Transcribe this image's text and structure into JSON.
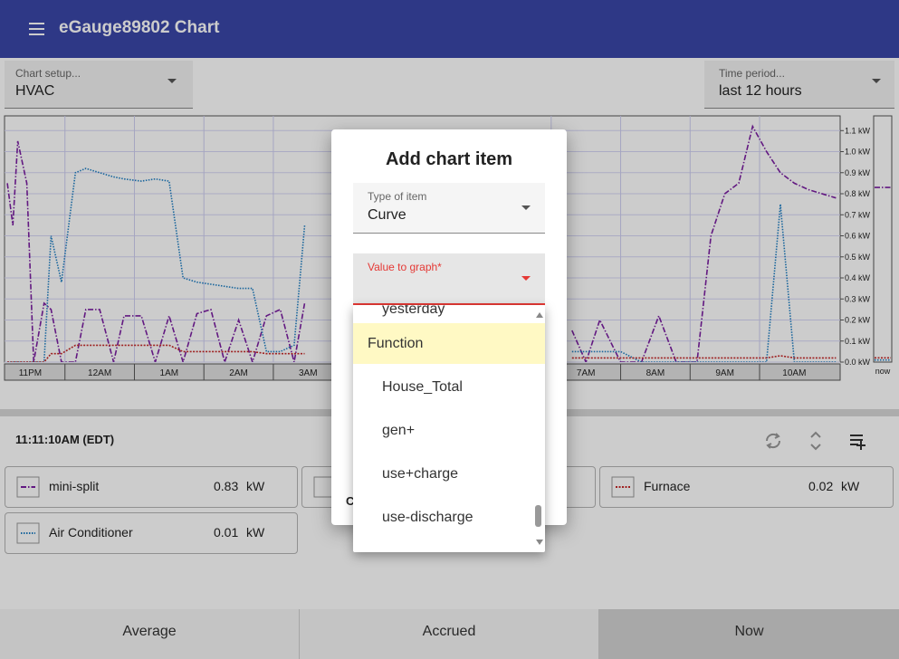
{
  "header": {
    "title": "eGauge89802 Chart"
  },
  "controls": {
    "chart_setup": {
      "label": "Chart setup...",
      "value": "HVAC"
    },
    "time_period": {
      "label": "Time period...",
      "value": "last 12 hours"
    }
  },
  "chart": {
    "type": "line",
    "unit": "kW",
    "now_label": "now",
    "xlim": [
      0.13,
      12.16
    ],
    "ylim": [
      0,
      1.17
    ],
    "xticks": [
      {
        "value": 0,
        "label": "11PM"
      },
      {
        "value": 1,
        "label": "12AM"
      },
      {
        "value": 2,
        "label": "1AM"
      },
      {
        "value": 3,
        "label": "2AM"
      },
      {
        "value": 4,
        "label": "3AM"
      },
      {
        "value": 8,
        "label": "7AM"
      },
      {
        "value": 9,
        "label": "8AM"
      },
      {
        "value": 10,
        "label": "9AM"
      },
      {
        "value": 11,
        "label": "10AM"
      }
    ],
    "yticks": [
      {
        "value": 0,
        "label": "0.0 kW"
      },
      {
        "value": 0.1,
        "label": "0.1 kW"
      },
      {
        "value": 0.2,
        "label": "0.2 kW"
      },
      {
        "value": 0.3,
        "label": "0.3 kW"
      },
      {
        "value": 0.4,
        "label": "0.4 kW"
      },
      {
        "value": 0.5,
        "label": "0.5 kW"
      },
      {
        "value": 0.6,
        "label": "0.6 kW"
      },
      {
        "value": 0.7,
        "label": "0.7 kW"
      },
      {
        "value": 0.8,
        "label": "0.8 kW"
      },
      {
        "value": 0.9,
        "label": "0.9 kW"
      },
      {
        "value": 1.0,
        "label": "1.0 kW"
      },
      {
        "value": 1.1,
        "label": "1.1 kW"
      }
    ],
    "x": [
      0.17,
      0.25,
      0.32,
      0.45,
      0.55,
      0.7,
      0.8,
      0.95,
      1.15,
      1.3,
      1.5,
      1.7,
      1.85,
      2.1,
      2.3,
      2.5,
      2.7,
      2.9,
      3.1,
      3.3,
      3.5,
      3.7,
      3.9,
      4.1,
      4.3,
      4.45,
      6,
      8.3,
      8.5,
      8.7,
      9.0,
      9.3,
      9.55,
      9.8,
      10.1,
      10.3,
      10.5,
      10.7,
      10.9,
      11.1,
      11.3,
      11.5,
      11.7,
      12.1
    ],
    "series": [
      {
        "name": "mini-split",
        "color": "#7b1fa2",
        "dash": "6 2 1.5 2",
        "current": 0.83,
        "values": [
          0.85,
          0.65,
          1.05,
          0.85,
          0.0,
          0.28,
          0.25,
          0.0,
          0.0,
          0.25,
          0.25,
          0.0,
          0.22,
          0.22,
          0.0,
          0.22,
          0.0,
          0.23,
          0.25,
          0.0,
          0.2,
          0.0,
          0.22,
          0.25,
          0.0,
          0.28,
          null,
          0.15,
          0.0,
          0.2,
          0.0,
          0.0,
          0.22,
          0.0,
          0.0,
          0.6,
          0.8,
          0.85,
          1.12,
          1.0,
          0.9,
          0.85,
          0.82,
          0.78
        ]
      },
      {
        "name": "Air Conditioner",
        "color": "#1e7fc4",
        "dash": "1.5 1.5",
        "current": 0.01,
        "values": [
          0.0,
          0.0,
          0.0,
          0.0,
          0.0,
          0.0,
          0.6,
          0.38,
          0.9,
          0.92,
          0.9,
          0.88,
          0.87,
          0.86,
          0.87,
          0.86,
          0.4,
          0.38,
          0.37,
          0.36,
          0.35,
          0.35,
          0.05,
          0.05,
          0.08,
          0.65,
          null,
          0.05,
          0.05,
          0.05,
          0.05,
          0.0,
          0.0,
          0.0,
          0.0,
          0.0,
          0.0,
          0.0,
          0.0,
          0.0,
          0.75,
          0.0,
          0.0,
          0.0
        ]
      },
      {
        "name": "Furnace",
        "color": "#c62828",
        "dash": "2 1.5",
        "current": 0.02,
        "values": [
          0.0,
          0.0,
          0.0,
          0.0,
          0.0,
          0.0,
          0.04,
          0.04,
          0.08,
          0.08,
          0.08,
          0.08,
          0.08,
          0.08,
          0.08,
          0.08,
          0.05,
          0.05,
          0.05,
          0.05,
          0.05,
          0.05,
          0.04,
          0.04,
          0.04,
          0.04,
          null,
          0.02,
          0.02,
          0.02,
          0.02,
          0.02,
          0.02,
          0.02,
          0.02,
          0.02,
          0.02,
          0.02,
          0.02,
          0.02,
          0.03,
          0.02,
          0.02,
          0.02
        ]
      }
    ]
  },
  "status": {
    "time": "11:11:10AM (EDT)"
  },
  "tabs": [
    "Average",
    "Accrued",
    "Now"
  ],
  "dialog": {
    "title": "Add chart item",
    "type_field": {
      "label": "Type of item",
      "value": "Curve"
    },
    "value_field": {
      "label": "Value to graph*"
    },
    "cancel": "Cancel"
  },
  "menu": {
    "items": [
      "yesterday",
      "Function",
      "House_Total",
      "gen+",
      "use+charge",
      "use-discharge"
    ]
  }
}
